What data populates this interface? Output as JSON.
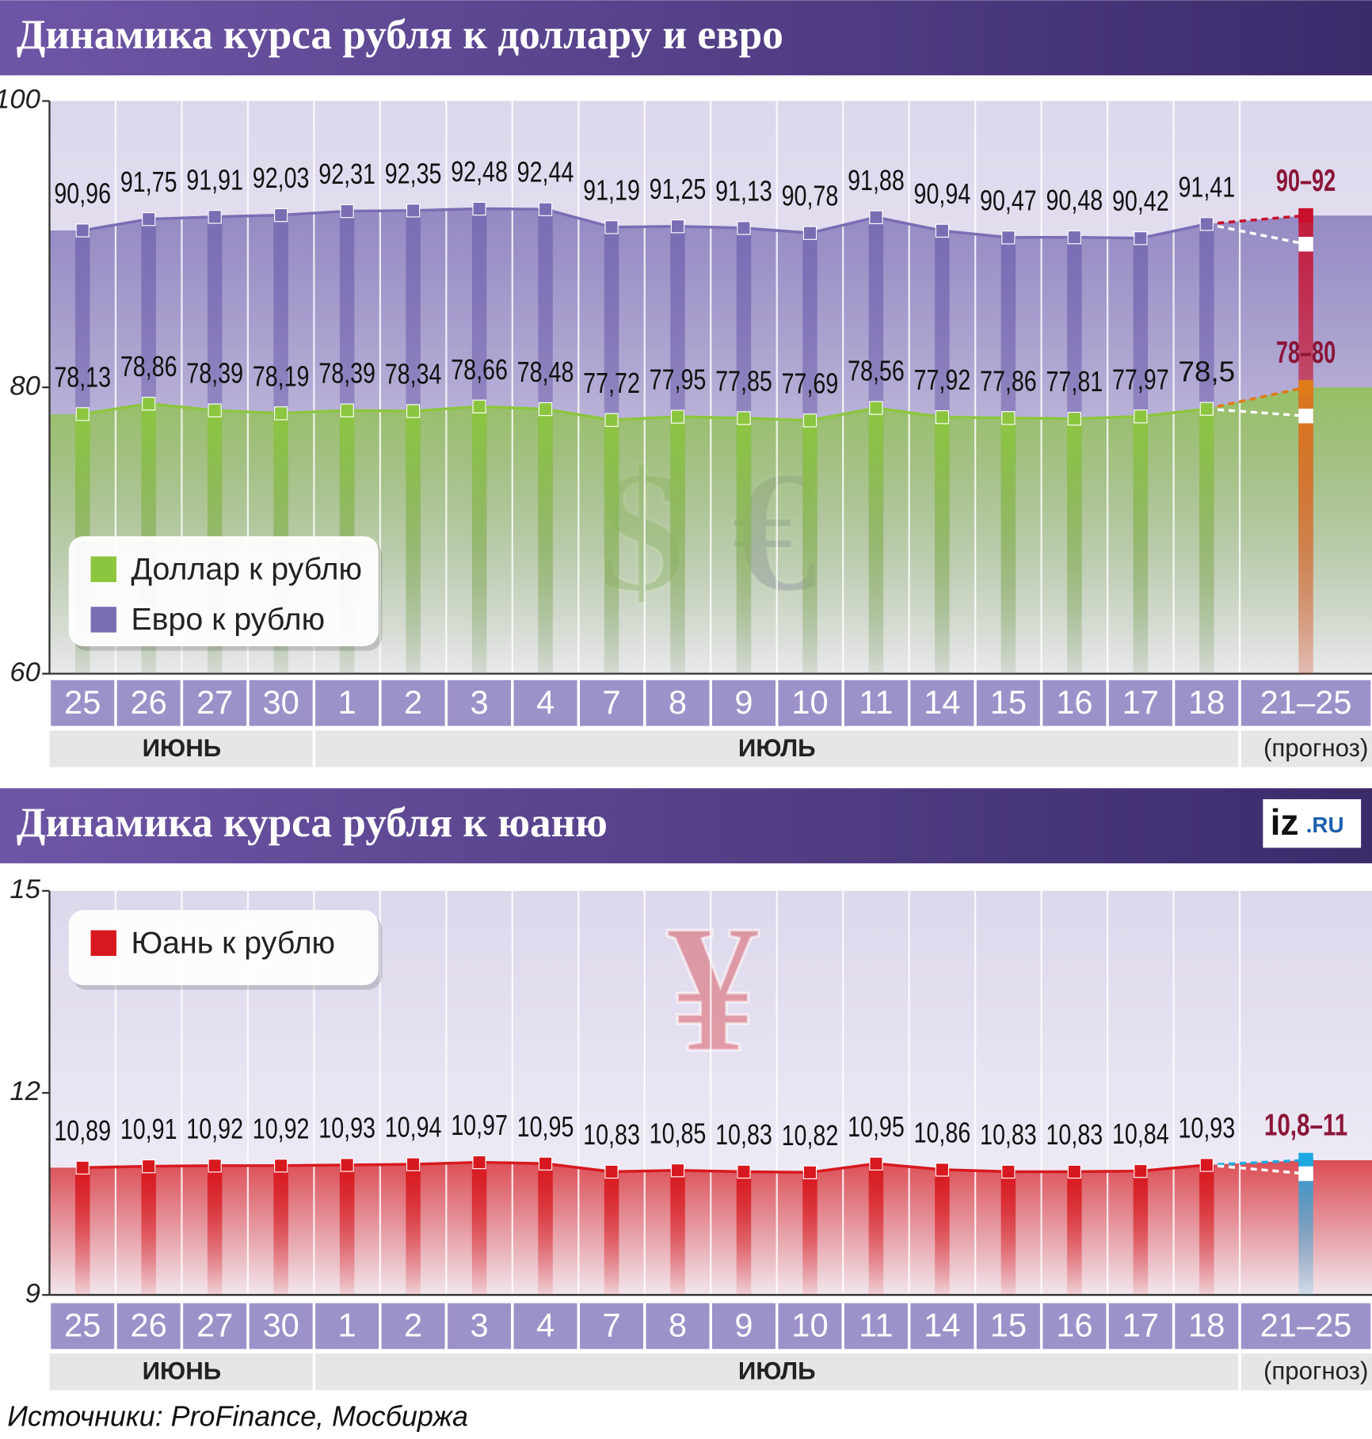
{
  "chart_data": [
    {
      "type": "line",
      "title": "Динамика курса рубля к доллару и евро",
      "categories": [
        "25",
        "26",
        "27",
        "30",
        "1",
        "2",
        "3",
        "4",
        "7",
        "8",
        "9",
        "10",
        "11",
        "14",
        "15",
        "16",
        "17",
        "18",
        "21–25"
      ],
      "months": [
        {
          "label": "ИЮНЬ",
          "span": 4
        },
        {
          "label": "ИЮЛЬ",
          "span": 14
        },
        {
          "label": "(прогноз)",
          "span": 1
        }
      ],
      "ylim": [
        60,
        100
      ],
      "yticks": [
        60,
        80,
        100
      ],
      "symbols": [
        "$",
        "€"
      ],
      "forecast_label_color": "#8b1538",
      "series": [
        {
          "name": "Евро к рублю",
          "color": "#7b6db4",
          "values": [
            90.96,
            91.75,
            91.91,
            92.03,
            92.31,
            92.35,
            92.48,
            92.44,
            91.19,
            91.25,
            91.13,
            90.78,
            91.88,
            90.94,
            90.47,
            90.48,
            90.42,
            91.41,
            null
          ],
          "value_labels": [
            "90,96",
            "91,75",
            "91,91",
            "92,03",
            "92,31",
            "92,35",
            "92,48",
            "92,44",
            "91,19",
            "91,25",
            "91,13",
            "90,78",
            "91,88",
            "90,94",
            "90,47",
            "90,48",
            "90,42",
            "91,41",
            null
          ],
          "forecast": {
            "label": "90–92",
            "low": 90,
            "high": 92,
            "color": "#c8102e"
          }
        },
        {
          "name": "Доллар к рублю",
          "color": "#8cc63f",
          "values": [
            78.13,
            78.86,
            78.39,
            78.19,
            78.39,
            78.34,
            78.66,
            78.48,
            77.72,
            77.95,
            77.85,
            77.69,
            78.56,
            77.92,
            77.86,
            77.81,
            77.97,
            78.5,
            null
          ],
          "value_labels": [
            "78,13",
            "78,86",
            "78,39",
            "78,19",
            "78,39",
            "78,34",
            "78,66",
            "78,48",
            "77,72",
            "77,95",
            "77,85",
            "77,69",
            "78,56",
            "77,92",
            "77,86",
            "77,81",
            "77,97",
            "78,5",
            null
          ],
          "forecast": {
            "label": "78–80",
            "low": 78,
            "high": 80,
            "color": "#e07b1a"
          }
        }
      ],
      "legend_order": [
        1,
        0
      ]
    },
    {
      "type": "line",
      "title": "Динамика курса рубля к юаню",
      "categories": [
        "25",
        "26",
        "27",
        "30",
        "1",
        "2",
        "3",
        "4",
        "7",
        "8",
        "9",
        "10",
        "11",
        "14",
        "15",
        "16",
        "17",
        "18",
        "21–25"
      ],
      "months": [
        {
          "label": "ИЮНЬ",
          "span": 4
        },
        {
          "label": "ИЮЛЬ",
          "span": 14
        },
        {
          "label": "(прогноз)",
          "span": 1
        }
      ],
      "ylim": [
        9,
        15
      ],
      "yticks": [
        9,
        12,
        15
      ],
      "symbols": [
        "¥"
      ],
      "forecast_label_color": "#8b1538",
      "series": [
        {
          "name": "Юань к рублю",
          "color": "#d7191f",
          "values": [
            10.89,
            10.91,
            10.92,
            10.92,
            10.93,
            10.94,
            10.97,
            10.95,
            10.83,
            10.85,
            10.83,
            10.82,
            10.95,
            10.86,
            10.83,
            10.83,
            10.84,
            10.93,
            null
          ],
          "value_labels": [
            "10,89",
            "10,91",
            "10,92",
            "10,92",
            "10,93",
            "10,94",
            "10,97",
            "10,95",
            "10,83",
            "10,85",
            "10,83",
            "10,82",
            "10,95",
            "10,86",
            "10,83",
            "10,83",
            "10,84",
            "10,93",
            null
          ],
          "forecast": {
            "label": "10,8–11",
            "low": 10.8,
            "high": 11,
            "color": "#1ea8e0"
          }
        }
      ],
      "legend_order": [
        0
      ]
    }
  ],
  "logo": {
    "main": "iz",
    "suffix": ".RU"
  },
  "source": "Источники: ProFinance, Мосбиржа"
}
